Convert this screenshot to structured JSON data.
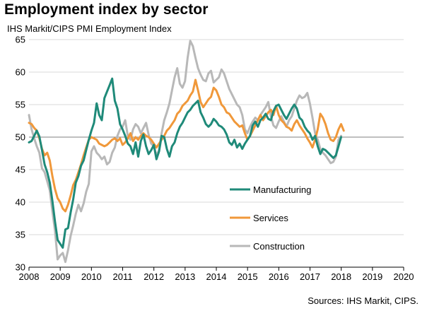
{
  "title": "Employment index by sector",
  "subtitle": "IHS Markit/CIPS PMI Employment Index",
  "source": "Sources: IHS Markit, CIPS.",
  "chart_data": {
    "type": "line",
    "ylim": [
      30,
      65
    ],
    "yticks": [
      30,
      35,
      40,
      45,
      50,
      55,
      60,
      65
    ],
    "xlim": [
      2008.0,
      2020.0
    ],
    "xticks": [
      "2008",
      "2009",
      "2010",
      "2011",
      "2012",
      "2013",
      "2014",
      "2015",
      "2016",
      "2017",
      "2018",
      "2019",
      "2020"
    ],
    "reference_line": 50,
    "grid": "horizontal",
    "legend_position": "center-right",
    "series": [
      {
        "name": "Manufacturing",
        "color": "#1f8a79",
        "x_start": 2008.0,
        "step": 0.0833,
        "values": [
          49.2,
          49.4,
          50.2,
          51.0,
          50.1,
          48.0,
          45.8,
          44.6,
          43.0,
          40.2,
          37.0,
          34.2,
          33.6,
          33.0,
          35.8,
          36.0,
          38.4,
          40.4,
          43.0,
          44.0,
          45.6,
          46.4,
          48.0,
          49.6,
          51.0,
          52.2,
          55.2,
          53.4,
          52.6,
          56.0,
          57.0,
          58.0,
          59.0,
          55.6,
          54.4,
          52.0,
          51.2,
          50.2,
          49.0,
          48.6,
          47.4,
          49.2,
          47.0,
          49.4,
          50.4,
          48.6,
          47.4,
          48.0,
          48.8,
          46.6,
          47.8,
          50.2,
          50.0,
          48.2,
          47.0,
          48.6,
          49.2,
          50.6,
          51.6,
          52.2,
          53.0,
          53.8,
          54.2,
          54.8,
          55.2,
          55.6,
          53.8,
          53.0,
          52.0,
          51.6,
          52.0,
          52.8,
          52.4,
          51.8,
          51.6,
          51.2,
          50.4,
          49.2,
          48.8,
          49.6,
          48.4,
          49.0,
          48.2,
          49.0,
          49.6,
          50.2,
          51.8,
          52.4,
          51.6,
          52.6,
          53.0,
          53.6,
          52.8,
          52.6,
          54.0,
          54.8,
          55.0,
          54.2,
          53.4,
          52.8,
          53.6,
          54.4,
          55.0,
          54.4,
          53.0,
          52.6,
          51.6,
          51.0,
          50.6,
          49.6,
          50.2,
          48.6,
          47.4,
          48.2,
          48.0,
          47.6,
          47.2,
          46.8,
          47.2,
          48.6,
          50.0
        ]
      },
      {
        "name": "Services",
        "color": "#f0983a",
        "x_start": 2008.0,
        "step": 0.0833,
        "values": [
          52.2,
          52.0,
          51.4,
          51.0,
          49.8,
          48.2,
          47.2,
          47.6,
          46.4,
          44.0,
          42.0,
          40.6,
          40.0,
          39.0,
          38.6,
          39.6,
          41.0,
          42.6,
          43.4,
          44.6,
          45.8,
          47.2,
          48.4,
          49.6,
          50.0,
          49.8,
          49.6,
          49.0,
          48.8,
          48.6,
          48.8,
          49.2,
          49.6,
          49.8,
          49.4,
          49.8,
          48.8,
          49.2,
          49.8,
          50.6,
          49.4,
          50.0,
          49.6,
          50.2,
          50.6,
          50.2,
          50.0,
          49.6,
          49.0,
          48.4,
          49.0,
          49.6,
          50.2,
          51.0,
          51.4,
          52.0,
          52.6,
          53.6,
          54.0,
          54.8,
          55.2,
          55.6,
          56.4,
          57.0,
          58.8,
          57.2,
          55.4,
          54.6,
          55.2,
          55.8,
          56.2,
          57.6,
          57.2,
          56.2,
          55.0,
          54.6,
          53.8,
          53.6,
          53.0,
          52.4,
          52.0,
          51.6,
          51.8,
          50.6,
          49.6,
          50.2,
          51.0,
          51.8,
          52.6,
          53.4,
          52.6,
          53.2,
          53.8,
          54.2,
          53.4,
          54.8,
          53.4,
          52.6,
          52.2,
          51.6,
          51.4,
          51.0,
          52.0,
          52.6,
          51.8,
          51.2,
          50.6,
          49.8,
          49.2,
          48.4,
          49.6,
          51.2,
          53.6,
          53.0,
          52.0,
          50.6,
          49.6,
          49.4,
          50.0,
          51.2,
          52.0,
          51.0
        ]
      },
      {
        "name": "Construction",
        "color": "#b8b8b8",
        "x_start": 2008.0,
        "step": 0.0833,
        "values": [
          53.4,
          51.2,
          49.8,
          48.6,
          47.6,
          45.2,
          44.6,
          43.2,
          41.8,
          38.6,
          35.6,
          31.2,
          31.8,
          32.2,
          30.8,
          32.6,
          34.8,
          36.4,
          38.2,
          39.6,
          38.6,
          39.8,
          41.6,
          42.8,
          47.8,
          48.6,
          47.6,
          47.2,
          46.6,
          47.0,
          45.8,
          46.2,
          47.6,
          48.4,
          50.2,
          51.2,
          51.6,
          52.6,
          50.2,
          49.6,
          51.2,
          52.0,
          51.6,
          50.6,
          51.4,
          52.2,
          50.4,
          49.0,
          48.6,
          47.2,
          48.0,
          50.6,
          52.6,
          53.8,
          55.2,
          57.2,
          59.2,
          60.6,
          58.2,
          57.6,
          58.6,
          62.2,
          64.8,
          64.0,
          62.2,
          60.6,
          59.6,
          58.8,
          58.6,
          59.8,
          60.2,
          58.4,
          58.8,
          59.2,
          60.4,
          59.8,
          58.6,
          57.4,
          56.6,
          55.8,
          55.0,
          54.6,
          53.4,
          51.2,
          50.6,
          51.6,
          52.4,
          53.0,
          52.6,
          53.4,
          54.0,
          54.6,
          55.4,
          53.2,
          51.8,
          51.4,
          52.4,
          53.2,
          52.4,
          51.6,
          52.6,
          53.2,
          54.4,
          55.6,
          56.4,
          56.0,
          56.2,
          56.8,
          55.2,
          53.0,
          50.6,
          49.6,
          48.2,
          47.6,
          47.2,
          46.6,
          46.0,
          46.2,
          47.0,
          49.6,
          50.2
        ]
      }
    ]
  }
}
